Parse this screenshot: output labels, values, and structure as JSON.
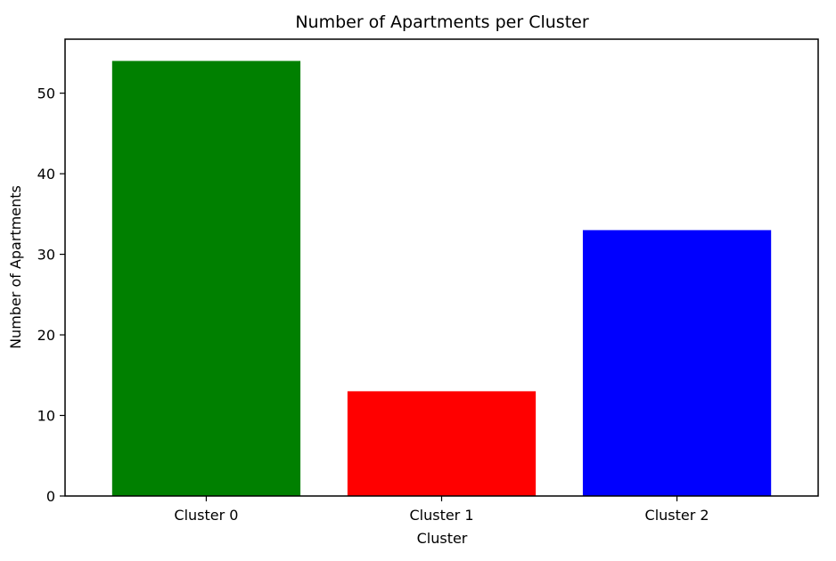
{
  "chart_data": {
    "type": "bar",
    "title": "Number of Apartments per Cluster",
    "xlabel": "Cluster",
    "ylabel": "Number of Apartments",
    "categories": [
      "Cluster 0",
      "Cluster 1",
      "Cluster 2"
    ],
    "values": [
      54,
      13,
      33
    ],
    "colors": [
      "#008000",
      "#ff0000",
      "#0000ff"
    ],
    "ylim": [
      0,
      56.7
    ],
    "yticks": [
      0,
      10,
      20,
      30,
      40,
      50
    ],
    "grid": false
  }
}
